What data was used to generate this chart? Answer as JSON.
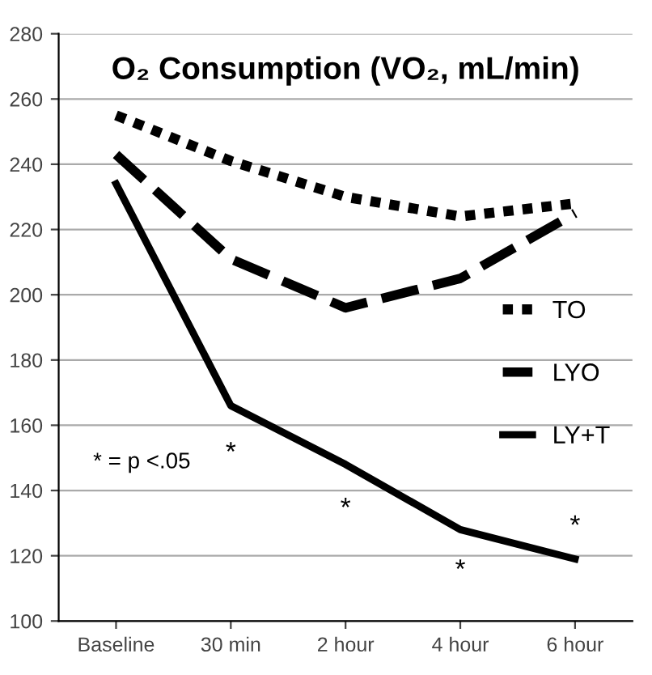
{
  "chart_data": {
    "type": "line",
    "title": "O₂ Consumption (VO₂, mL/min)",
    "categories": [
      "Baseline",
      "30 min",
      "2 hour",
      "4 hour",
      "6 hour"
    ],
    "series": [
      {
        "name": "TO",
        "color": "#000000",
        "line_style": "dotted",
        "values": [
          255,
          241,
          230,
          224,
          228
        ]
      },
      {
        "name": "LYO",
        "color": "#000000",
        "line_style": "dashed",
        "values": [
          243,
          211,
          196,
          205,
          225
        ]
      },
      {
        "name": "LY+T",
        "color": "#000000",
        "line_style": "solid",
        "values": [
          234,
          166,
          148,
          128,
          119
        ]
      }
    ],
    "ylim": [
      100,
      280
    ],
    "yticks": [
      100,
      120,
      140,
      160,
      180,
      200,
      220,
      240,
      260,
      280
    ],
    "grid": "y",
    "legend": "right",
    "annotations": [
      "*",
      "*",
      "*",
      "*",
      "* = p <.05"
    ]
  }
}
